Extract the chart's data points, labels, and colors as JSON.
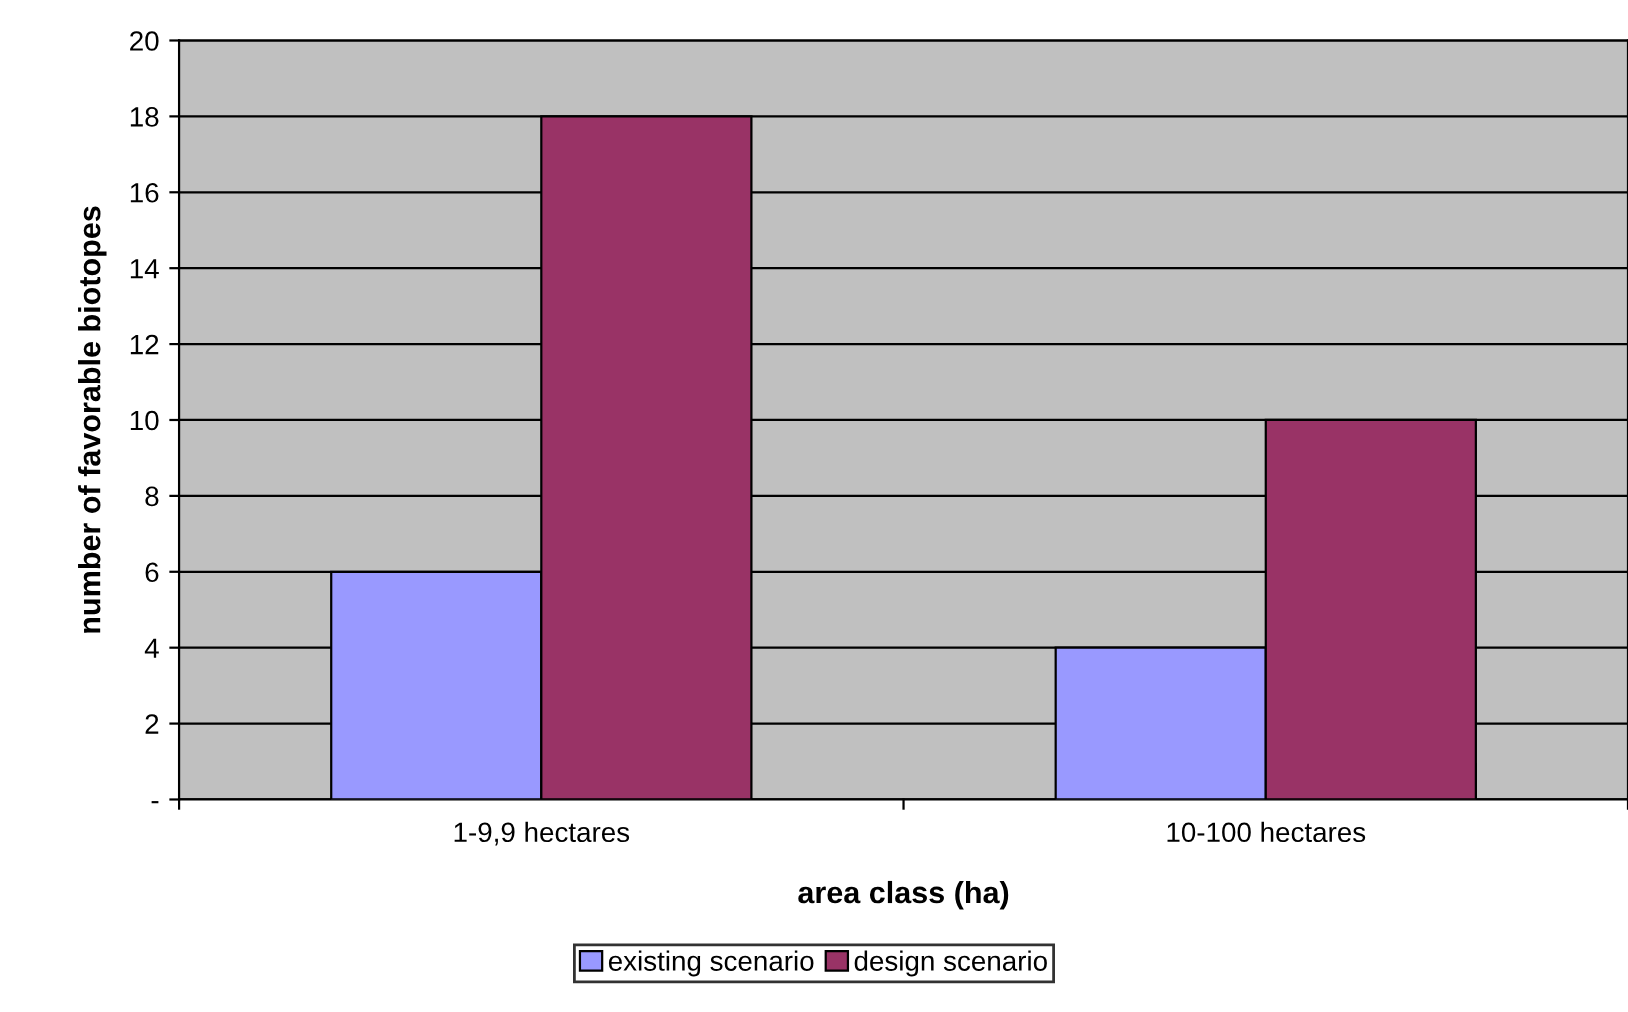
{
  "chart_data": {
    "type": "bar",
    "xlabel": "area class (ha)",
    "ylabel": "number of favorable biotopes",
    "categories": [
      "1-9,9 hectares",
      "10-100 hectares"
    ],
    "series": [
      {
        "name": "existing scenario",
        "color": "#9999ff",
        "values": [
          6,
          4
        ]
      },
      {
        "name": "design scenario",
        "color": "#993366",
        "values": [
          18,
          10
        ]
      }
    ],
    "ylim": [
      0,
      20
    ],
    "yticks": [
      {
        "value": 0,
        "label": "-"
      },
      2,
      4,
      6,
      8,
      10,
      12,
      14,
      16,
      18,
      20
    ],
    "grid": "y",
    "legend": "bottom"
  }
}
